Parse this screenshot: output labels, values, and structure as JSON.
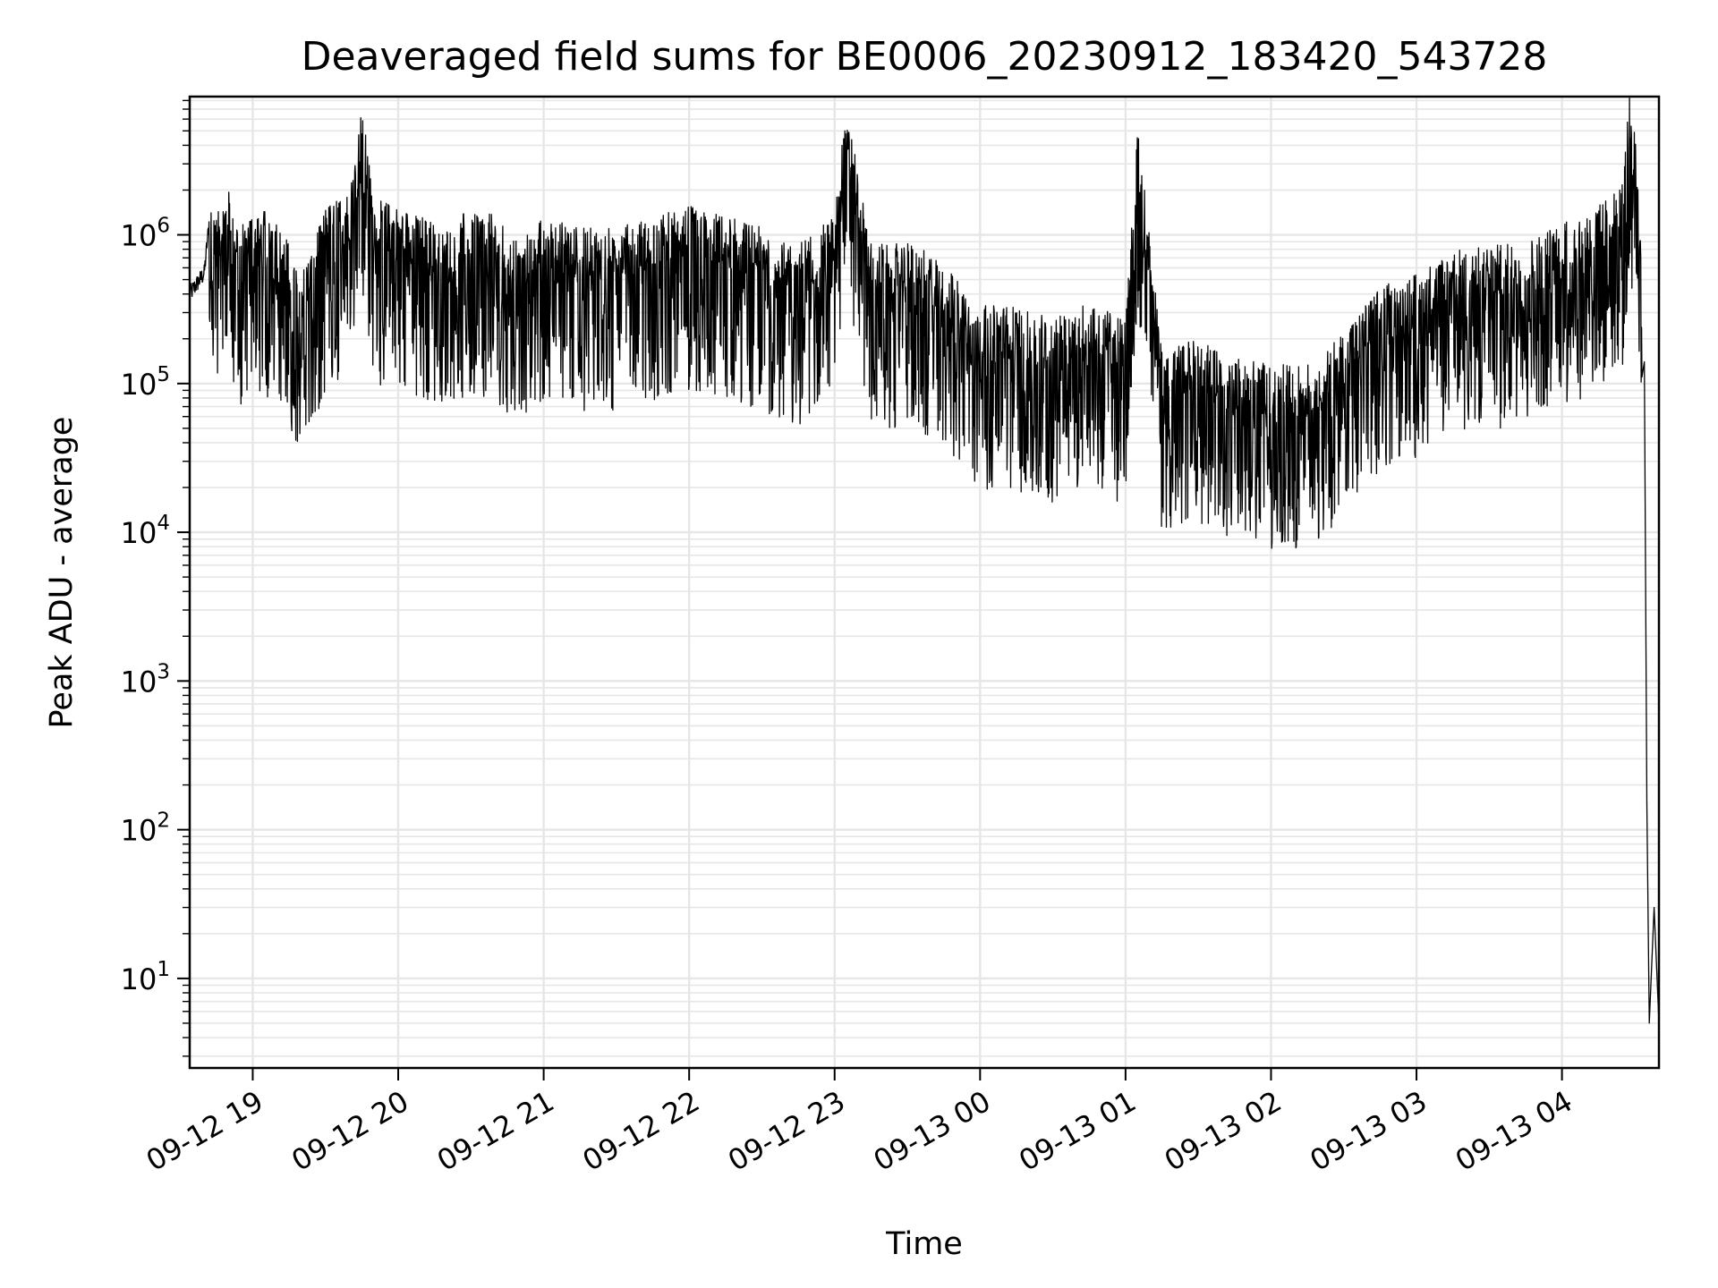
{
  "chart_data": {
    "type": "line",
    "title": "Deaveraged field sums for BE0006_20230912_183420_543728",
    "xlabel": "Time",
    "ylabel": "Peak ADU - average",
    "yscale": "log",
    "ylim": [
      2.5,
      8500000
    ],
    "xlim": [
      "2023-09-12 18:34",
      "2023-09-13 04:40"
    ],
    "grid": true,
    "line_color": "#000000",
    "x_ticks": [
      "2023-09-12 19:00",
      "2023-09-12 20:00",
      "2023-09-12 21:00",
      "2023-09-12 22:00",
      "2023-09-12 23:00",
      "2023-09-13 00:00",
      "2023-09-13 01:00",
      "2023-09-13 02:00",
      "2023-09-13 03:00",
      "2023-09-13 04:00"
    ],
    "x_tick_labels": [
      "09-12 19",
      "09-12 20",
      "09-12 21",
      "09-12 22",
      "09-12 23",
      "09-13 00",
      "09-13 01",
      "09-13 02",
      "09-13 03",
      "09-13 04"
    ],
    "y_ticks": [
      10,
      100,
      1000,
      10000,
      100000,
      1000000
    ],
    "y_tick_labels": [
      {
        "base": "10",
        "exp": "1"
      },
      {
        "base": "10",
        "exp": "2"
      },
      {
        "base": "10",
        "exp": "3"
      },
      {
        "base": "10",
        "exp": "4"
      },
      {
        "base": "10",
        "exp": "5"
      },
      {
        "base": "10",
        "exp": "6"
      }
    ],
    "series": [
      {
        "x": [
          "2023-09-12 18:34",
          "2023-09-12 18:40",
          "2023-09-12 18:42",
          "2023-09-12 18:45",
          "2023-09-12 18:50",
          "2023-09-12 18:55",
          "2023-09-12 19:00",
          "2023-09-12 19:10",
          "2023-09-12 19:20",
          "2023-09-12 19:30",
          "2023-09-12 19:40",
          "2023-09-12 19:45",
          "2023-09-12 19:50",
          "2023-09-12 20:00",
          "2023-09-12 20:10",
          "2023-09-12 20:20",
          "2023-09-12 20:30",
          "2023-09-12 20:40",
          "2023-09-12 20:50",
          "2023-09-12 21:00",
          "2023-09-12 21:15",
          "2023-09-12 21:30",
          "2023-09-12 21:45",
          "2023-09-12 22:00",
          "2023-09-12 22:15",
          "2023-09-12 22:30",
          "2023-09-12 22:45",
          "2023-09-12 23:00",
          "2023-09-12 23:04",
          "2023-09-12 23:15",
          "2023-09-12 23:30",
          "2023-09-12 23:45",
          "2023-09-13 00:00",
          "2023-09-13 00:15",
          "2023-09-13 00:30",
          "2023-09-13 00:45",
          "2023-09-13 01:00",
          "2023-09-13 01:05",
          "2023-09-13 01:15",
          "2023-09-13 01:30",
          "2023-09-13 01:45",
          "2023-09-13 02:00",
          "2023-09-13 02:15",
          "2023-09-13 02:30",
          "2023-09-13 02:45",
          "2023-09-13 03:00",
          "2023-09-13 03:15",
          "2023-09-13 03:30",
          "2023-09-13 03:45",
          "2023-09-13 04:00",
          "2023-09-13 04:15",
          "2023-09-13 04:25",
          "2023-09-13 04:28",
          "2023-09-13 04:31",
          "2023-09-13 04:33",
          "2023-09-13 04:34",
          "2023-09-13 04:35",
          "2023-09-13 04:36",
          "2023-09-13 04:38",
          "2023-09-13 04:40"
        ],
        "y": [
          400000,
          550000,
          1200000,
          600000,
          900000,
          500000,
          700000,
          600000,
          250000,
          700000,
          900000,
          3300000,
          800000,
          700000,
          600000,
          500000,
          700000,
          600000,
          400000,
          600000,
          500000,
          500000,
          600000,
          700000,
          600000,
          500000,
          400000,
          600000,
          3800000,
          400000,
          400000,
          300000,
          150000,
          150000,
          120000,
          160000,
          120000,
          2500000,
          80000,
          90000,
          70000,
          60000,
          60000,
          100000,
          200000,
          250000,
          350000,
          380000,
          400000,
          550000,
          700000,
          1000000,
          4500000,
          1500000,
          700000,
          140000,
          150,
          5,
          30,
          5
        ]
      }
    ]
  }
}
